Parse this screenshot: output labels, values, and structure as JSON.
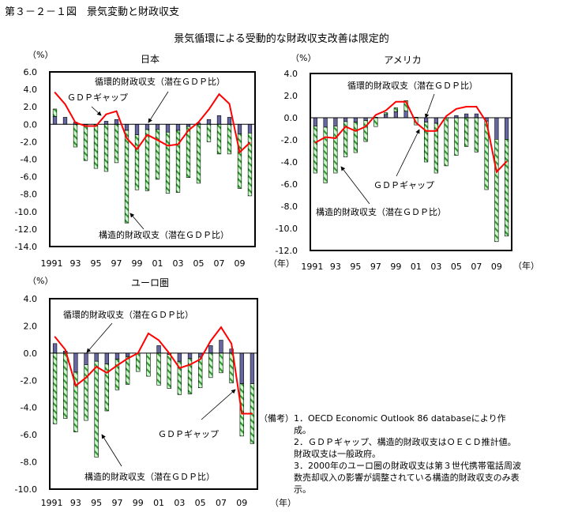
{
  "figure": {
    "title": "第３－２－１図　景気変動と財政収支",
    "subtitle": "景気循環による受動的な財政収支改善は限定的"
  },
  "notes": {
    "label": "（備考）",
    "items": [
      "1．OECD Economic Outlook 86 databaseにより作成。",
      "2．ＧＤＰギャップ、構造的財政収支はＯＥＣＤ推計値。財政収支は一般政府。",
      "3．2000年のユーロ圏の財政収支は第３世代携帯電話周波数売却収入の影響が調整されている構造的財政収支のみ表示。"
    ]
  },
  "colors": {
    "cyclical": "#6666a0",
    "structural_fill": "#ccffcc",
    "structural_hatch": "#339933",
    "gdp_gap": "#ff0000"
  },
  "chart_data": [
    {
      "type": "bar+line",
      "title": "日本",
      "ylabel": "（%）",
      "xunit": "（年）",
      "ylim": [
        -14,
        6
      ],
      "yticks": [
        "6.0",
        "4.0",
        "2.0",
        "0.0",
        "-2.0",
        "-4.0",
        "-6.0",
        "-8.0",
        "-10.0",
        "-12.0",
        "-14.0"
      ],
      "xticks": [
        "1991",
        "93",
        "95",
        "97",
        "99",
        "01",
        "03",
        "05",
        "07",
        "09"
      ],
      "years": [
        1991,
        1992,
        1993,
        1994,
        1995,
        1996,
        1997,
        1998,
        1999,
        2000,
        2001,
        2002,
        2003,
        2004,
        2005,
        2006,
        2007,
        2008,
        2009,
        2010
      ],
      "series": [
        {
          "name": "循環的財政収支（潜在ＧＤＰ比）",
          "kind": "bar",
          "values": [
            0.9,
            0.8,
            0.25,
            -0.05,
            -0.05,
            0.35,
            0.55,
            -0.7,
            -1.2,
            -0.6,
            -0.6,
            -0.9,
            -0.7,
            -0.25,
            0.15,
            0.55,
            1.0,
            0.8,
            -1.1,
            -1.0
          ]
        },
        {
          "name": "構造的財政収支（潜在ＧＤＰ比）",
          "kind": "bar",
          "values": [
            0.85,
            0,
            -2.6,
            -4.1,
            -5.0,
            -5.4,
            -4.4,
            -10.6,
            -6.3,
            -7.0,
            -5.7,
            -7.0,
            -7.1,
            -5.85,
            -6.75,
            -2.0,
            -3.4,
            -3.4,
            -6.25,
            -7.2
          ]
        },
        {
          "name": "ＧＤＰギャップ",
          "kind": "line",
          "values": [
            3.65,
            2.3,
            0.2,
            -0.2,
            -0.2,
            1.15,
            1.5,
            -1.6,
            -2.85,
            -1.2,
            -1.8,
            -2.45,
            -2.3,
            -0.7,
            0.25,
            1.7,
            3.45,
            2.35,
            -3.2,
            -2.1
          ]
        }
      ]
    },
    {
      "type": "bar+line",
      "title": "アメリカ",
      "ylabel": "（%）",
      "xunit": "（年）",
      "ylim": [
        -12,
        4
      ],
      "yticks": [
        "4.0",
        "2.0",
        "0.0",
        "-2.0",
        "-4.0",
        "-6.0",
        "-8.0",
        "-10.0",
        "-12.0"
      ],
      "xticks": [
        "1991",
        "93",
        "95",
        "97",
        "99",
        "01",
        "03",
        "05",
        "07",
        "09"
      ],
      "years": [
        1991,
        1992,
        1993,
        1994,
        1995,
        1996,
        1997,
        1998,
        1999,
        2000,
        2001,
        2002,
        2003,
        2004,
        2005,
        2006,
        2007,
        2008,
        2009,
        2010
      ],
      "series": [
        {
          "name": "循環的財政収支（潜在ＧＤＰ比）",
          "kind": "bar",
          "values": [
            -0.75,
            -0.85,
            -0.75,
            -0.35,
            -0.4,
            -0.25,
            0.05,
            0.3,
            0.55,
            0.6,
            0.05,
            -0.4,
            -0.5,
            0,
            0.2,
            0.35,
            0.35,
            -0.3,
            -1.95,
            -1.95
          ]
        },
        {
          "name": "構造的財政収支（潜在ＧＤＰ比）",
          "kind": "bar",
          "values": [
            -4.25,
            -5.05,
            -4.25,
            -3.2,
            -2.75,
            -1.9,
            -0.8,
            0.15,
            0.35,
            0.95,
            -0.65,
            -3.6,
            -4.5,
            -4.35,
            -3.4,
            -2.6,
            -3.1,
            -6.2,
            -9.25,
            -8.75
          ]
        },
        {
          "name": "ＧＤＰギャップ",
          "kind": "line",
          "values": [
            -2.25,
            -1.75,
            -1.85,
            -0.8,
            -1.2,
            -0.8,
            0.25,
            0.65,
            1.45,
            1.45,
            -0.45,
            -1.2,
            -1.2,
            0.15,
            0.8,
            1.0,
            1.0,
            -0.4,
            -4.9,
            -3.95
          ]
        }
      ]
    },
    {
      "type": "bar+line",
      "title": "ユーロ圏",
      "ylabel": "（%）",
      "xunit": "（年）",
      "ylim": [
        -10,
        4
      ],
      "yticks": [
        "4.0",
        "2.0",
        "0.0",
        "-2.0",
        "-4.0",
        "-6.0",
        "-8.0",
        "-10.0"
      ],
      "xticks": [
        "1991",
        "93",
        "95",
        "97",
        "99",
        "01",
        "03",
        "05",
        "07",
        "09"
      ],
      "years": [
        1991,
        1992,
        1993,
        1994,
        1995,
        1996,
        1997,
        1998,
        1999,
        2000,
        2001,
        2002,
        2003,
        2004,
        2005,
        2006,
        2007,
        2008,
        2009,
        2010
      ],
      "series": [
        {
          "name": "循環的財政収支（潜在ＧＤＰ比）",
          "kind": "bar",
          "values": [
            0.7,
            0.15,
            -1.4,
            -0.85,
            -0.6,
            -0.8,
            -0.45,
            -0.25,
            0,
            0,
            0.55,
            -0.1,
            -0.6,
            -0.4,
            -0.3,
            0.55,
            0.95,
            0.3,
            -2.25,
            -2.25
          ]
        },
        {
          "name": "構造的財政収支（潜在ＧＤＰ比）",
          "kind": "bar",
          "values": [
            -5.2,
            -4.8,
            -4.4,
            -4.1,
            -7.05,
            -3.45,
            -2.25,
            -2.05,
            -1.35,
            -1.7,
            -2.35,
            -2.5,
            -2.45,
            -2.6,
            -2.25,
            -1.8,
            -1.45,
            -2.2,
            -3.85,
            -4.4
          ]
        },
        {
          "name": "ＧＤＰギャップ",
          "kind": "line",
          "values": [
            1.2,
            0.25,
            -2.4,
            -1.8,
            -1.0,
            -1.45,
            -0.9,
            -0.4,
            0.0,
            1.45,
            0.95,
            0.0,
            -1.1,
            -0.85,
            -0.45,
            0.9,
            1.9,
            0.7,
            -4.45,
            -4.45
          ]
        }
      ]
    }
  ]
}
